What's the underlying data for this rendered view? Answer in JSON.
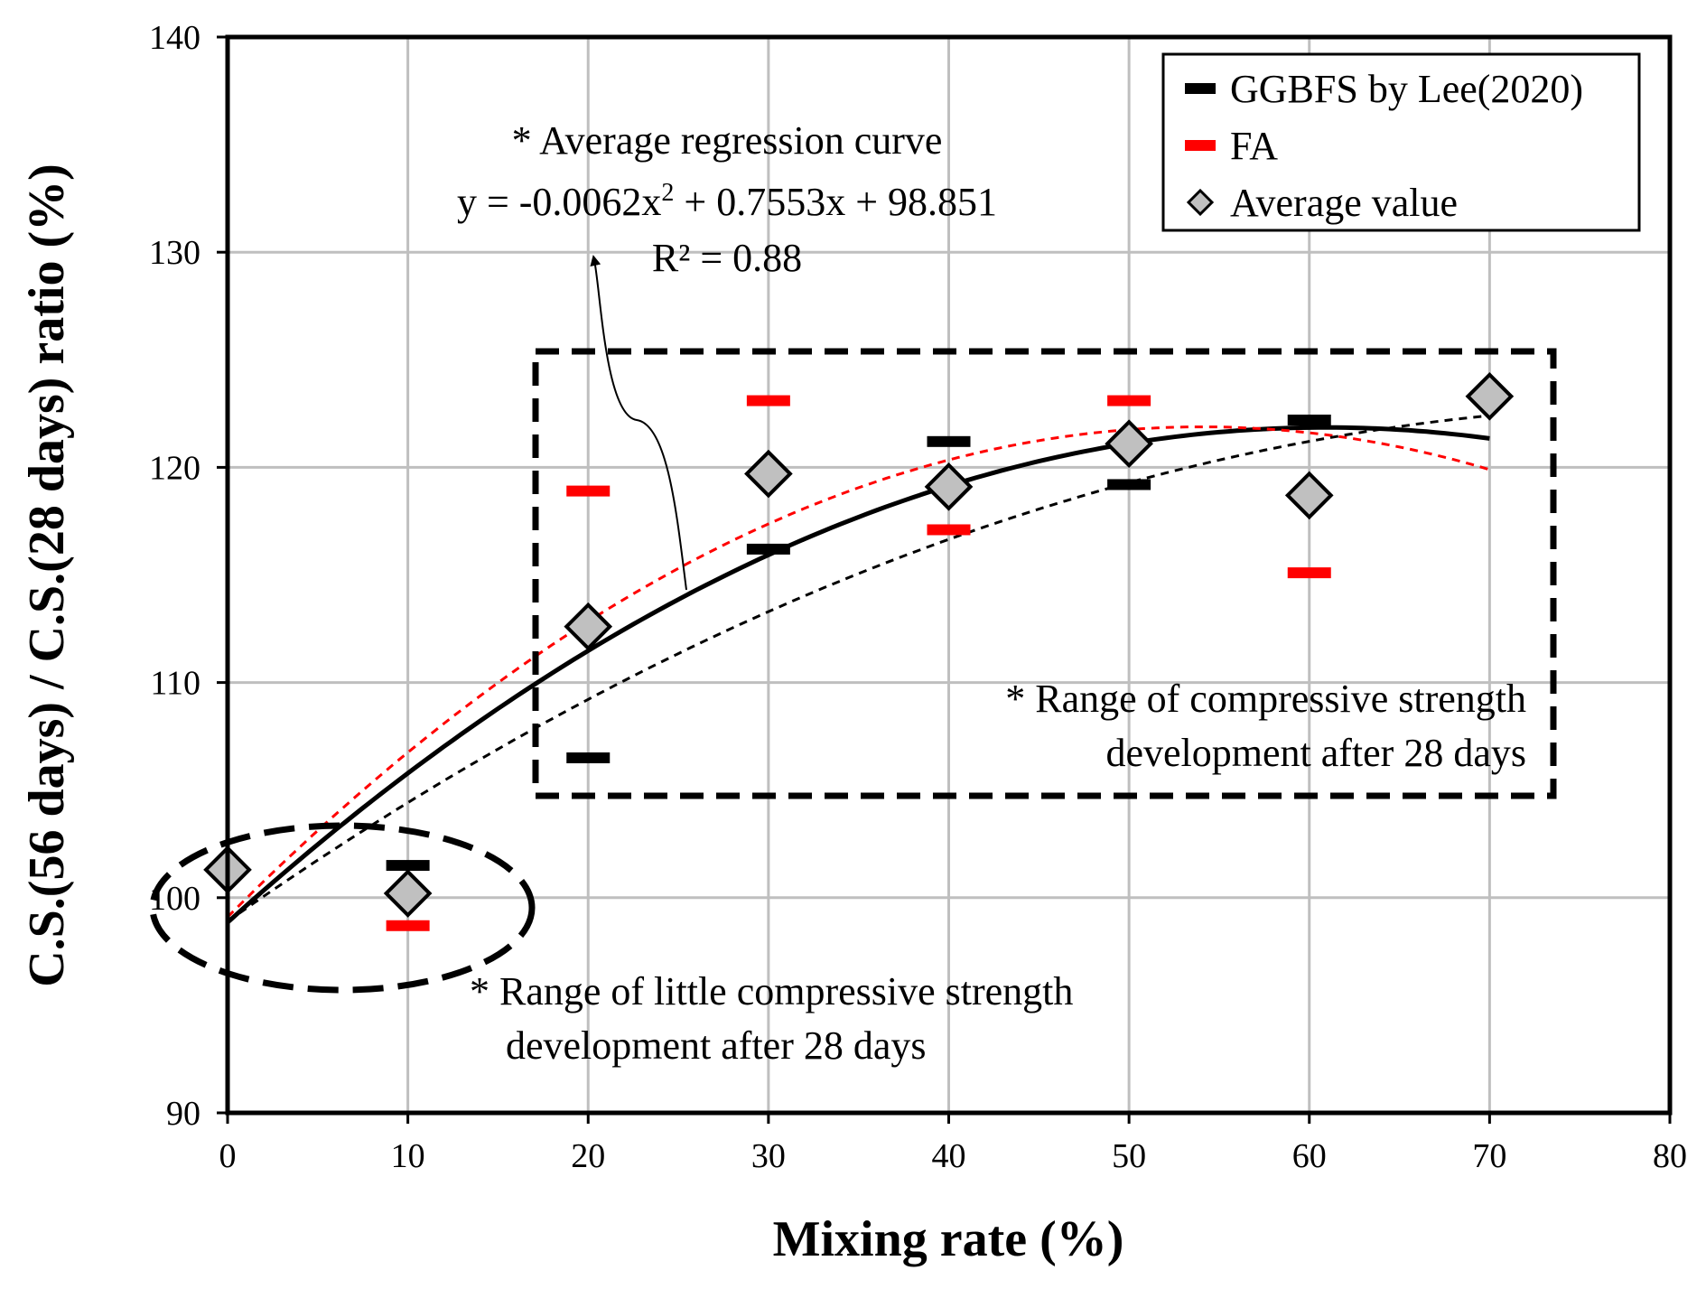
{
  "chart_data": {
    "type": "scatter",
    "xlabel": "Mixing rate (%)",
    "ylabel": "C.S.(56 days) / C.S.(28 days) ratio (%)",
    "xlim": [
      0,
      80
    ],
    "ylim": [
      90,
      140
    ],
    "x_ticks": [
      "0",
      "10",
      "20",
      "30",
      "40",
      "50",
      "60",
      "70",
      "80"
    ],
    "y_ticks": [
      "90",
      "100",
      "110",
      "120",
      "130",
      "140"
    ],
    "grid": true,
    "legend_position": "top-right",
    "legend": [
      {
        "name": "GGBFS by Lee(2020)",
        "marker": "dash",
        "color": "#000000"
      },
      {
        "name": "FA",
        "marker": "dash",
        "color": "#ff0000"
      },
      {
        "name": "Average value",
        "marker": "diamond",
        "color": "#c0c0c0"
      }
    ],
    "series": [
      {
        "name": "GGBFS by Lee(2020)",
        "color": "#000000",
        "points": [
          [
            10,
            101.5
          ],
          [
            20,
            106.5
          ],
          [
            30,
            116.2
          ],
          [
            40,
            121.2
          ],
          [
            50,
            119.2
          ],
          [
            60,
            122.2
          ]
        ]
      },
      {
        "name": "FA",
        "color": "#ff0000",
        "points": [
          [
            10,
            98.7
          ],
          [
            20,
            118.9
          ],
          [
            30,
            123.1
          ],
          [
            40,
            117.1
          ],
          [
            50,
            123.1
          ],
          [
            60,
            115.1
          ]
        ]
      },
      {
        "name": "Average value",
        "color": "#c0c0c0",
        "points": [
          [
            0,
            101.3
          ],
          [
            10,
            100.2
          ],
          [
            20,
            112.6
          ],
          [
            30,
            119.7
          ],
          [
            40,
            119.1
          ],
          [
            50,
            121.1
          ],
          [
            60,
            118.7
          ],
          [
            70,
            123.3
          ]
        ]
      }
    ],
    "curves": [
      {
        "name": "Average regression curve",
        "style": "solid",
        "color": "#000000",
        "coef": [
          -0.0062,
          0.7553,
          98.851
        ],
        "x_range": [
          0,
          70
        ]
      },
      {
        "name": "FA trend",
        "style": "dashed",
        "color": "#ff0000",
        "coef": [
          -0.0078,
          0.8431,
          99.1
        ],
        "x_range": [
          0,
          70
        ]
      },
      {
        "name": "GGBFS trend",
        "style": "dashed",
        "color": "#000000",
        "coef": [
          -0.0036,
          0.5878,
          98.9
        ],
        "x_range": [
          0,
          70
        ]
      }
    ],
    "annotations": {
      "regression_title": "* Average regression curve",
      "equation_main": "y = -0.0062x",
      "equation_exp": "2",
      "equation_tail": " + 0.7553x + 98.851",
      "r_squared": "R² = 0.88",
      "range_high_1": "* Range of compressive strength",
      "range_high_2": "development after 28 days",
      "range_low_1": "* Range of little compressive strength",
      "range_low_2": "development after 28 days"
    }
  }
}
